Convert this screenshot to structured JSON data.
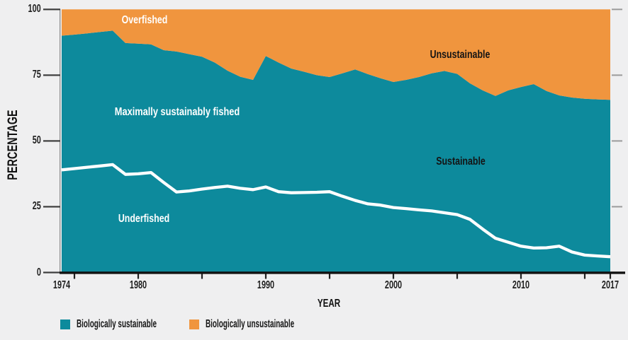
{
  "chart_data": {
    "type": "area",
    "stacked": true,
    "xlabel": "YEAR",
    "ylabel": "PERCENTAGE",
    "xlim": [
      1974,
      2017
    ],
    "ylim": [
      0,
      100
    ],
    "grid": false,
    "legend_position": "bottom-left",
    "yticks": [
      0,
      25,
      50,
      75,
      100
    ],
    "xticks_labeled": [
      1974,
      1980,
      1990,
      2000,
      2010,
      2017
    ],
    "xticks_minor": [
      1975,
      1980,
      1985,
      1990,
      1995,
      2000,
      2005,
      2010,
      2015,
      2017
    ],
    "years": [
      1974,
      1975,
      1976,
      1977,
      1978,
      1979,
      1980,
      1981,
      1982,
      1983,
      1984,
      1985,
      1986,
      1987,
      1988,
      1989,
      1990,
      1991,
      1992,
      1993,
      1994,
      1995,
      1996,
      1997,
      1998,
      1999,
      2000,
      2001,
      2002,
      2003,
      2004,
      2005,
      2006,
      2007,
      2008,
      2009,
      2010,
      2011,
      2012,
      2013,
      2014,
      2015,
      2016,
      2017
    ],
    "series": [
      {
        "name": "Biologically sustainable",
        "color": "#0d8a9c",
        "values": [
          90.0,
          90.4,
          90.9,
          91.4,
          91.9,
          87.2,
          87.0,
          86.7,
          84.5,
          84.0,
          83.0,
          82.0,
          79.8,
          76.7,
          74.4,
          73.2,
          82.3,
          79.8,
          77.5,
          76.3,
          75.0,
          74.3,
          75.7,
          77.2,
          75.4,
          73.8,
          72.4,
          73.2,
          74.3,
          75.7,
          76.6,
          75.5,
          71.9,
          69.2,
          67.1,
          69.2,
          70.5,
          71.6,
          69.0,
          67.3,
          66.5,
          66.0,
          65.8,
          65.6
        ]
      },
      {
        "name": "Biologically unsustainable",
        "color": "#f0953e",
        "values": [
          10.0,
          9.6,
          9.1,
          8.6,
          8.1,
          12.8,
          13.0,
          13.3,
          15.5,
          16.0,
          17.0,
          18.0,
          20.2,
          23.3,
          25.6,
          26.8,
          17.7,
          20.2,
          22.5,
          23.7,
          25.0,
          25.7,
          24.3,
          22.8,
          24.6,
          26.2,
          27.6,
          26.8,
          25.7,
          24.3,
          23.4,
          24.5,
          28.1,
          30.8,
          32.9,
          30.8,
          29.5,
          28.4,
          31.0,
          32.7,
          33.5,
          34.0,
          34.2,
          34.4
        ]
      }
    ],
    "underfished_line": {
      "name": "Underfished share (white boundary line)",
      "color": "#ffffff",
      "values": [
        39.0,
        39.5,
        40.0,
        40.5,
        41.0,
        37.3,
        37.5,
        38.0,
        34.2,
        30.6,
        31.0,
        31.7,
        32.3,
        32.8,
        32.0,
        31.5,
        32.5,
        30.7,
        30.3,
        30.4,
        30.5,
        30.7,
        29.0,
        27.4,
        26.1,
        25.6,
        24.7,
        24.3,
        23.8,
        23.4,
        22.7,
        22.0,
        20.2,
        16.5,
        13.0,
        11.5,
        10.0,
        9.3,
        9.4,
        10.0,
        7.8,
        6.6,
        6.3,
        6.0
      ]
    }
  },
  "labels": {
    "overfished": "Overfished",
    "unsustainable": "Unsustainable",
    "maximally_sustainably_fished": "Maximally sustainably fished",
    "sustainable": "Sustainable",
    "underfished": "Underfished"
  },
  "legend": {
    "items": [
      {
        "label": "Biologically sustainable",
        "color": "#0d8a9c"
      },
      {
        "label": "Biologically unsustainable",
        "color": "#f0953e"
      }
    ]
  },
  "colors": {
    "background": "#efeff0",
    "axis": "#111111",
    "tick_left": "#3d3d3d",
    "tick_right": "#9b9b9b",
    "y_axis_line": "#8c8c8c"
  }
}
